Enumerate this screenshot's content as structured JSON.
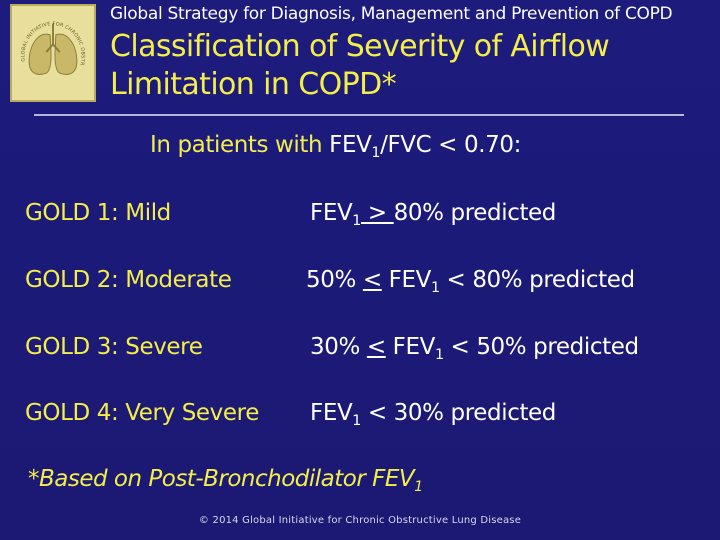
{
  "header": {
    "subtitle": "Global Strategy for Diagnosis, Management and Prevention of COPD",
    "title_line1": "Classification of Severity of Airflow",
    "title_line2": "Limitation in COPD*"
  },
  "logo": {
    "icon": "gold-lungs-logo",
    "text": "GLOBAL INITIATIVE FOR CHRONIC OBSTRUCTIVE LUNG DISEASE"
  },
  "intro": {
    "prefix": "In patients with ",
    "fev": "FEV",
    "sub": "1",
    "suffix": "/FVC < 0.70:"
  },
  "rows": [
    {
      "grade": "GOLD 1: Mild",
      "pre": "",
      "op1": "",
      "fev": "FEV",
      "sub": "1",
      "op2": " > ",
      "post": "80% predicted"
    },
    {
      "grade": "GOLD 2: Moderate",
      "pre": "50% ",
      "op1": "<",
      "fev": " FEV",
      "sub": "1",
      "op2": " < ",
      "post": "80% predicted"
    },
    {
      "grade": "GOLD 3: Severe",
      "pre": "30% ",
      "op1": "<",
      "fev": " FEV",
      "sub": "1",
      "op2": " < ",
      "post": "50% predicted"
    },
    {
      "grade": "GOLD 4: Very Severe",
      "pre": "",
      "op1": "",
      "fev": "FEV",
      "sub": "1",
      "op2": " < ",
      "post": "30% predicted"
    }
  ],
  "footnote": {
    "text": "*Based on Post-Bronchodilator FEV",
    "sub": "1"
  },
  "copyright": "© 2014 Global Initiative for Chronic Obstructive Lung Disease",
  "colors": {
    "background": "#1c1a78",
    "accent": "#f4ee4a",
    "text": "#ffffff"
  }
}
